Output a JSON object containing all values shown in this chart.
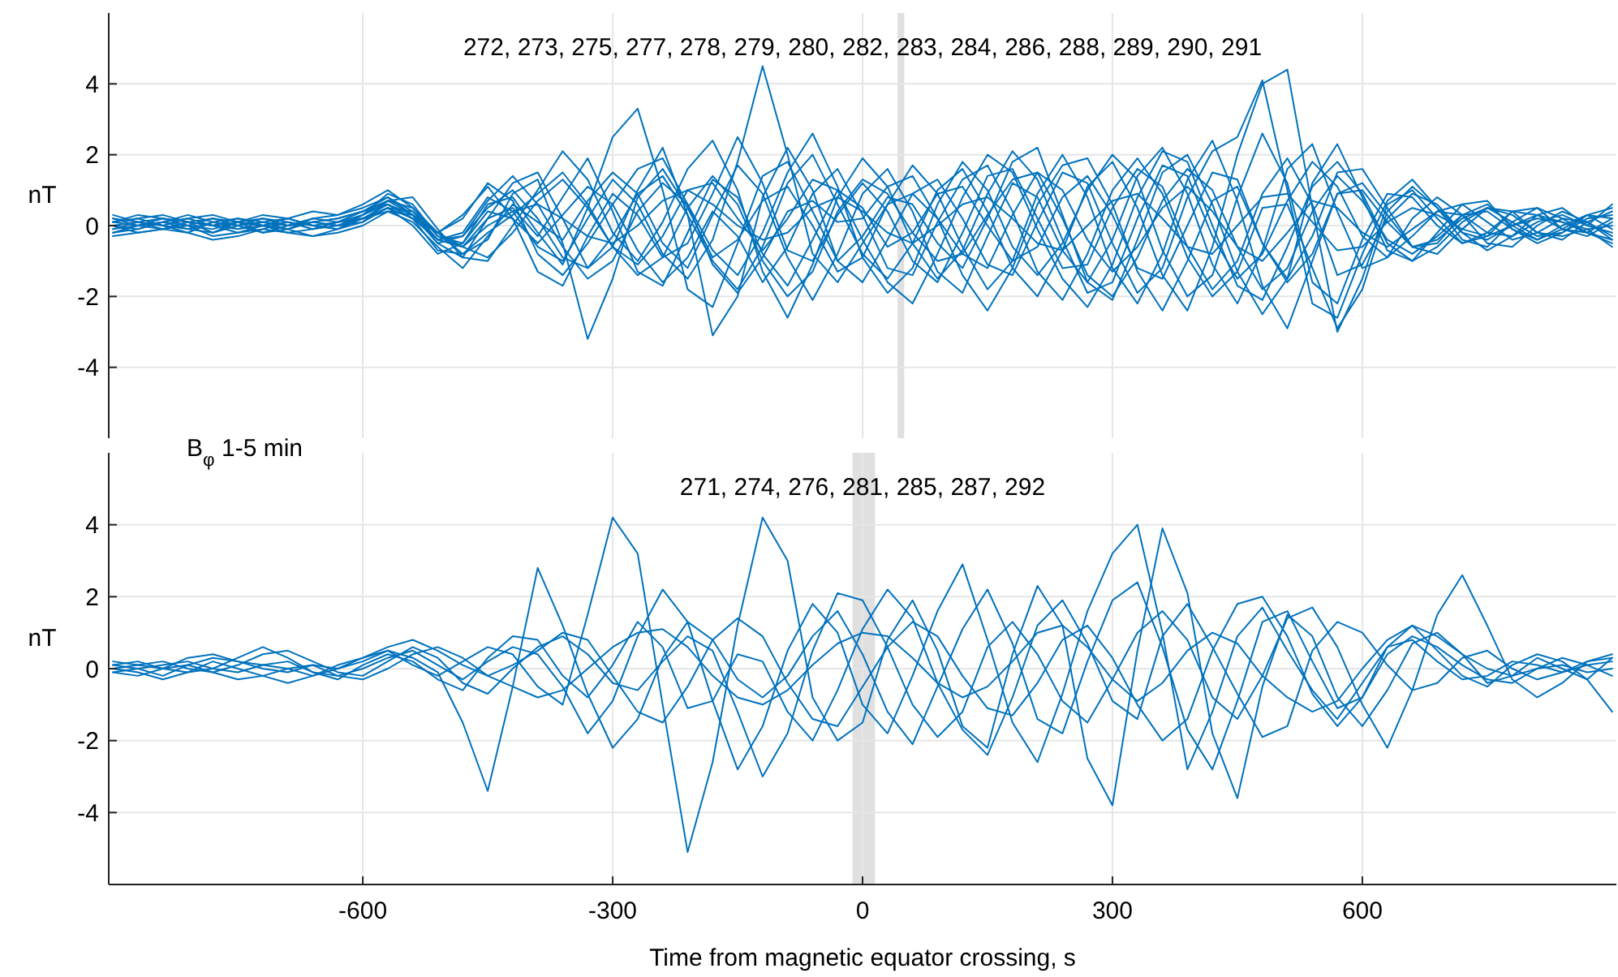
{
  "chart_data": [
    {
      "type": "line",
      "ylabel": "nT",
      "annotations": [
        "272, 273, 275, 277, 278, 279, 280, 282, 283, 284, 286, 288, 289, 290, 291"
      ],
      "x": [
        -900,
        -870,
        -840,
        -810,
        -780,
        -750,
        -720,
        -690,
        -660,
        -630,
        -600,
        -570,
        -540,
        -510,
        -480,
        -450,
        -420,
        -390,
        -360,
        -330,
        -300,
        -270,
        -240,
        -210,
        -180,
        -150,
        -120,
        -90,
        -60,
        -30,
        0,
        30,
        60,
        90,
        120,
        150,
        180,
        210,
        240,
        270,
        300,
        330,
        360,
        390,
        420,
        450,
        480,
        510,
        540,
        570,
        600,
        630,
        660,
        690,
        720,
        750,
        780,
        810,
        840,
        870,
        900
      ],
      "xlim": [
        -905,
        905
      ],
      "xticks": [
        -600,
        -300,
        0,
        300,
        600
      ],
      "ylim": [
        -6,
        6
      ],
      "yticks": [
        -4,
        -2,
        0,
        2,
        4
      ],
      "tick_labels": "y",
      "grid": true,
      "bands": [
        {
          "axis": "x",
          "from": 42,
          "to": 50,
          "color": "#e0e0e0"
        }
      ],
      "series": [
        {
          "color": "#0072bd",
          "values": [
            0.1,
            0.2,
            0.0,
            -0.1,
            0.1,
            0.0,
            0.2,
            0.1,
            -0.1,
            0.0,
            0.3,
            0.6,
            0.2,
            -0.4,
            -0.2,
            0.8,
            0.4,
            -0.6,
            -1.0,
            0.2,
            1.3,
            0.6,
            -0.8,
            -1.5,
            -0.4,
            1.8,
            4.5,
            2.0,
            -0.8,
            -1.6,
            -0.5,
            0.6,
            0.9,
            0.2,
            -0.8,
            -1.2,
            0.3,
            1.5,
            1.0,
            -0.4,
            -1.3,
            -0.6,
            0.5,
            1.1,
            0.4,
            -0.6,
            -1.0,
            -0.2,
            0.7,
            0.5,
            -0.2,
            -0.6,
            -0.1,
            0.4,
            0.3,
            -0.2,
            -0.3,
            0.1,
            0.3,
            0.0,
            -0.2
          ]
        },
        {
          "color": "#0072bd",
          "values": [
            -0.1,
            0.0,
            0.2,
            0.1,
            -0.2,
            0.0,
            0.1,
            -0.1,
            0.2,
            0.3,
            0.5,
            0.8,
            0.3,
            -0.5,
            -0.3,
            0.5,
            1.0,
            0.2,
            -0.9,
            -1.2,
            -0.3,
            0.9,
            1.4,
            0.3,
            -1.0,
            -1.8,
            -0.6,
            1.2,
            2.0,
            0.6,
            -0.8,
            -1.5,
            -0.5,
            1.0,
            1.6,
            0.4,
            -1.2,
            -2.0,
            -0.7,
            1.1,
            1.8,
            0.5,
            -1.4,
            -2.4,
            -0.6,
            2.0,
            4.0,
            4.4,
            0.5,
            -3.0,
            -1.5,
            0.6,
            1.0,
            0.2,
            -0.5,
            -0.3,
            0.4,
            0.5,
            -0.1,
            -0.3,
            0.1
          ]
        },
        {
          "color": "#0072bd",
          "values": [
            0.2,
            0.1,
            -0.1,
            0.0,
            0.2,
            0.1,
            -0.2,
            0.0,
            0.1,
            0.2,
            0.4,
            0.7,
            0.5,
            -0.3,
            -0.6,
            0.2,
            1.2,
            1.5,
            0.2,
            -1.2,
            -0.6,
            1.0,
            2.2,
            0.3,
            -3.1,
            -2.0,
            0.8,
            2.2,
            1.0,
            -1.0,
            -1.6,
            -0.4,
            0.9,
            1.3,
            0.2,
            -1.1,
            -1.4,
            0.1,
            1.5,
            1.2,
            -0.5,
            -1.9,
            -1.2,
            0.8,
            2.1,
            2.5,
            4.1,
            1.0,
            -2.2,
            -2.6,
            -0.8,
            0.7,
            1.3,
            0.5,
            -0.4,
            -0.6,
            0.1,
            0.5,
            0.2,
            -0.2,
            -0.4
          ]
        },
        {
          "color": "#0072bd",
          "values": [
            0.0,
            -0.2,
            -0.1,
            0.1,
            0.0,
            -0.2,
            -0.1,
            0.1,
            0.0,
            -0.1,
            0.2,
            0.5,
            0.4,
            -0.2,
            -0.8,
            -0.4,
            0.9,
            1.3,
            -0.5,
            -3.2,
            -1.5,
            0.8,
            1.6,
            0.5,
            -0.9,
            -0.4,
            0.7,
            1.1,
            0.0,
            -1.3,
            -0.9,
            0.6,
            1.7,
            0.9,
            -0.6,
            -1.8,
            -1.0,
            0.9,
            2.0,
            0.8,
            -1.2,
            -2.2,
            -0.8,
            1.3,
            2.4,
            0.7,
            -1.7,
            -2.9,
            -1.0,
            0.9,
            1.2,
            0.3,
            -0.6,
            -0.5,
            0.3,
            0.6,
            0.0,
            -0.4,
            -0.1,
            0.3,
            0.2
          ]
        },
        {
          "color": "#0072bd",
          "values": [
            0.1,
            0.3,
            0.2,
            0.0,
            -0.1,
            0.1,
            0.3,
            0.2,
            0.0,
            0.1,
            0.3,
            0.9,
            0.6,
            -0.3,
            -0.5,
            0.6,
            0.8,
            -0.2,
            -1.1,
            0.5,
            2.5,
            3.3,
            1.0,
            -1.8,
            -2.3,
            -0.5,
            1.4,
            1.8,
            0.4,
            -1.0,
            -0.3,
            0.8,
            0.6,
            -0.5,
            -1.2,
            0.2,
            1.8,
            2.2,
            0.3,
            -1.6,
            -2.1,
            -0.4,
            1.5,
            2.0,
            0.6,
            -1.3,
            -2.5,
            -1.5,
            1.2,
            2.3,
            0.8,
            -0.7,
            -1.0,
            -0.2,
            0.6,
            0.7,
            -0.1,
            -0.5,
            -0.2,
            0.3,
            0.5
          ]
        },
        {
          "color": "#0072bd",
          "values": [
            -0.2,
            -0.1,
            0.1,
            0.0,
            -0.3,
            -0.2,
            0.0,
            -0.1,
            -0.3,
            -0.2,
            0.0,
            0.4,
            0.1,
            -0.6,
            -1.2,
            -0.3,
            0.6,
            0.1,
            -0.4,
            0.7,
            1.5,
            0.9,
            -0.5,
            -1.2,
            0.3,
            1.7,
            0.9,
            -0.9,
            -2.1,
            -0.8,
            0.9,
            1.6,
            0.4,
            -1.3,
            -1.9,
            -0.3,
            1.2,
            0.8,
            -0.7,
            -1.6,
            -0.4,
            1.4,
            2.2,
            0.9,
            -1.1,
            -2.2,
            -0.7,
            1.6,
            2.3,
            0.4,
            -1.2,
            -0.9,
            0.2,
            0.8,
            0.3,
            -0.5,
            -0.6,
            0.0,
            0.4,
            0.1,
            -0.3
          ]
        },
        {
          "color": "#0072bd",
          "values": [
            0.3,
            0.1,
            0.0,
            0.2,
            0.3,
            0.1,
            0.0,
            0.2,
            0.4,
            0.3,
            0.6,
            1.0,
            0.5,
            -0.2,
            0.3,
            1.1,
            0.2,
            -1.3,
            -1.7,
            -0.3,
            0.9,
            0.3,
            -0.9,
            -0.5,
            0.9,
            2.5,
            1.2,
            -0.7,
            -1.0,
            0.3,
            1.2,
            0.4,
            -1.0,
            -1.6,
            -0.2,
            1.4,
            1.6,
            0.2,
            -1.2,
            -1.1,
            0.5,
            1.6,
            1.1,
            -0.6,
            -1.8,
            -1.0,
            0.9,
            1.9,
            0.6,
            -1.4,
            -1.1,
            0.2,
            0.9,
            0.6,
            -0.2,
            -0.7,
            -0.3,
            0.3,
            0.5,
            0.0,
            0.6
          ]
        },
        {
          "color": "#0072bd",
          "values": [
            -0.1,
            0.1,
            0.0,
            -0.2,
            0.1,
            0.2,
            0.0,
            -0.1,
            0.1,
            0.0,
            0.2,
            0.6,
            0.3,
            -0.5,
            -0.9,
            0.2,
            0.5,
            -0.3,
            0.8,
            1.9,
            0.4,
            -1.3,
            -1.7,
            -0.2,
            1.3,
            0.8,
            -0.8,
            -1.7,
            -0.4,
            1.0,
            0.5,
            -0.6,
            -0.2,
            0.9,
            1.1,
            0.0,
            -1.0,
            -0.6,
            0.8,
            1.4,
            0.3,
            -1.2,
            -1.5,
            0.0,
            1.5,
            1.3,
            -0.5,
            -1.6,
            -0.8,
            0.9,
            1.0,
            0.1,
            -0.6,
            -0.4,
            0.2,
            0.5,
            0.1,
            -0.3,
            -0.2,
            0.2,
            0.3
          ]
        },
        {
          "color": "#0072bd",
          "values": [
            0.0,
            0.1,
            0.2,
            0.1,
            0.0,
            0.1,
            0.2,
            0.0,
            0.1,
            0.2,
            0.4,
            0.8,
            0.4,
            -0.4,
            -0.6,
            0.0,
            0.4,
            0.6,
            0.2,
            -0.3,
            -0.5,
            0.0,
            0.7,
            1.0,
            0.6,
            0.0,
            -0.4,
            -0.2,
            0.5,
            0.8,
            0.4,
            -0.2,
            -0.5,
            0.0,
            0.6,
            0.8,
            0.2,
            -0.5,
            -0.7,
            0.0,
            0.7,
            0.9,
            0.2,
            -0.6,
            -0.8,
            0.0,
            0.8,
            0.9,
            0.1,
            -0.7,
            -0.6,
            0.1,
            0.5,
            0.3,
            -0.1,
            -0.3,
            0.0,
            0.2,
            0.1,
            -0.1,
            0.0
          ]
        },
        {
          "color": "#0072bd",
          "values": [
            -0.3,
            -0.2,
            -0.1,
            -0.2,
            -0.4,
            -0.3,
            -0.1,
            -0.2,
            -0.3,
            -0.1,
            0.1,
            0.5,
            0.2,
            -0.7,
            -0.8,
            -0.2,
            0.3,
            0.9,
            1.5,
            0.6,
            -0.6,
            -1.4,
            -0.9,
            0.5,
            1.4,
            0.6,
            -1.0,
            -2.0,
            -1.3,
            0.4,
            1.3,
            0.9,
            -0.2,
            -1.0,
            -0.8,
            0.3,
            1.3,
            1.5,
            0.2,
            -1.4,
            -2.0,
            -0.9,
            0.7,
            1.6,
            1.0,
            -0.6,
            -1.8,
            -1.2,
            0.4,
            1.4,
            0.7,
            -0.4,
            -0.8,
            -0.3,
            0.3,
            0.4,
            -0.1,
            -0.4,
            0.0,
            0.3,
            -0.1
          ]
        },
        {
          "color": "#0072bd",
          "values": [
            0.2,
            0.0,
            -0.1,
            0.1,
            0.2,
            0.0,
            -0.2,
            -0.1,
            0.1,
            0.0,
            0.1,
            0.7,
            0.8,
            -0.1,
            -0.9,
            -1.0,
            0.0,
            1.0,
            2.1,
            1.3,
            -0.2,
            -1.0,
            0.1,
            1.6,
            2.4,
            1.0,
            -1.3,
            -2.6,
            -1.1,
            0.8,
            1.9,
            1.1,
            -0.5,
            -1.5,
            -0.7,
            0.9,
            2.1,
            1.3,
            -0.4,
            -1.9,
            -1.6,
            0.2,
            1.7,
            1.4,
            -0.3,
            -1.5,
            -0.8,
            0.7,
            1.8,
            1.1,
            -0.3,
            -0.9,
            -0.3,
            0.4,
            0.6,
            0.1,
            -0.4,
            -0.2,
            0.2,
            0.1,
            -0.4
          ]
        },
        {
          "color": "#0072bd",
          "values": [
            0.1,
            0.0,
            0.1,
            0.3,
            0.1,
            -0.1,
            0.1,
            0.2,
            0.0,
            -0.1,
            0.3,
            0.7,
            0.3,
            -0.4,
            -0.3,
            0.7,
            1.4,
            0.6,
            -0.6,
            -1.5,
            -1.0,
            0.4,
            1.2,
            0.6,
            -0.7,
            -1.4,
            -0.2,
            1.5,
            2.6,
            1.1,
            -0.9,
            -1.9,
            -1.2,
            0.6,
            1.8,
            1.0,
            -0.6,
            -1.4,
            -0.5,
            1.0,
            2.0,
            1.3,
            -0.7,
            -2.0,
            -1.4,
            0.8,
            2.6,
            1.2,
            -1.6,
            -2.2,
            -0.4,
            0.9,
            0.8,
            0.0,
            -0.5,
            -0.2,
            0.4,
            0.3,
            -0.1,
            -0.2,
            0.2
          ]
        },
        {
          "color": "#0072bd",
          "values": [
            -0.2,
            0.0,
            0.1,
            -0.1,
            -0.2,
            0.1,
            0.0,
            -0.2,
            -0.1,
            0.1,
            0.2,
            0.5,
            0.0,
            -0.8,
            -0.5,
            0.4,
            0.2,
            -0.5,
            0.3,
            1.1,
            0.6,
            -0.7,
            -1.6,
            -0.9,
            0.4,
            -0.3,
            -1.6,
            -0.6,
            0.9,
            1.6,
            0.3,
            -1.2,
            -1.4,
            0.1,
            1.3,
            1.7,
            0.4,
            -1.3,
            -2.1,
            -0.8,
            1.0,
            1.9,
            0.9,
            -0.9,
            -2.0,
            -1.3,
            0.5,
            0.6,
            -1.2,
            -2.9,
            -1.8,
            0.4,
            1.1,
            0.5,
            -0.2,
            -0.4,
            0.0,
            0.3,
            0.1,
            -0.2,
            -0.5
          ]
        },
        {
          "color": "#0072bd",
          "values": [
            0.1,
            0.2,
            0.3,
            0.1,
            0.0,
            0.2,
            0.1,
            0.0,
            0.2,
            0.1,
            0.4,
            0.6,
            0.2,
            -0.2,
            0.2,
            1.2,
            0.7,
            -0.8,
            -1.4,
            -0.5,
            0.6,
            1.6,
            1.9,
            0.6,
            -1.1,
            -1.9,
            -0.9,
            0.4,
            0.7,
            0.1,
            0.2,
            1.1,
            1.4,
            0.2,
            -1.4,
            -2.4,
            -1.2,
            0.6,
            1.7,
            1.9,
            0.6,
            -1.3,
            -2.4,
            -1.0,
            0.7,
            1.1,
            -0.5,
            -1.5,
            -0.3,
            1.5,
            1.6,
            0.5,
            -0.6,
            -0.8,
            -0.1,
            0.5,
            0.4,
            -0.2,
            -0.4,
            0.1,
            0.4
          ]
        },
        {
          "color": "#0072bd",
          "values": [
            0.0,
            -0.1,
            0.1,
            0.2,
            0.0,
            -0.1,
            0.0,
            0.1,
            -0.1,
            0.1,
            0.2,
            0.4,
            0.3,
            -0.2,
            -0.6,
            -0.9,
            -0.2,
            0.7,
            1.3,
            0.5,
            -0.6,
            -1.1,
            -0.3,
            1.0,
            1.2,
            0.2,
            -0.7,
            0.2,
            1.3,
            1.0,
            -0.4,
            -1.6,
            -2.2,
            -0.8,
            0.8,
            2.0,
            1.5,
            -0.1,
            -1.5,
            -2.3,
            -1.1,
            0.8,
            2.1,
            1.8,
            0.0,
            -1.7,
            -2.1,
            -0.6,
            1.1,
            1.8,
            0.9,
            -0.5,
            -1.0,
            -0.6,
            0.1,
            0.5,
            0.3,
            -0.2,
            -0.3,
            -0.1,
            -0.6
          ]
        }
      ]
    },
    {
      "type": "line",
      "ylabel": "nT",
      "xlabel": "Time from magnetic equator crossing, s",
      "annotations": [
        "B$_{φ}$ 1-5 min",
        "271, 274, 276, 281, 285, 287, 292"
      ],
      "x": [
        -900,
        -870,
        -840,
        -810,
        -780,
        -750,
        -720,
        -690,
        -660,
        -630,
        -600,
        -570,
        -540,
        -510,
        -480,
        -450,
        -420,
        -390,
        -360,
        -330,
        -300,
        -270,
        -240,
        -210,
        -180,
        -150,
        -120,
        -90,
        -60,
        -30,
        0,
        30,
        60,
        90,
        120,
        150,
        180,
        210,
        240,
        270,
        300,
        330,
        360,
        390,
        420,
        450,
        480,
        510,
        540,
        570,
        600,
        630,
        660,
        690,
        720,
        750,
        780,
        810,
        840,
        870,
        900
      ],
      "xlim": [
        -905,
        905
      ],
      "xticks": [
        -600,
        -300,
        0,
        300,
        600
      ],
      "ylim": [
        -6,
        6
      ],
      "yticks": [
        -4,
        -2,
        0,
        2,
        4
      ],
      "grid": true,
      "bands": [
        {
          "axis": "x",
          "from": -12,
          "to": 15,
          "color": "#e0e0e0"
        }
      ],
      "series": [
        {
          "color": "#0072bd",
          "values": [
            0.1,
            0.0,
            -0.2,
            0.1,
            0.3,
            0.2,
            0.0,
            -0.1,
            0.1,
            0.0,
            0.2,
            0.5,
            0.3,
            -0.1,
            -1.5,
            -3.4,
            -0.5,
            2.8,
            1.2,
            -0.7,
            -2.2,
            -1.4,
            0.3,
            1.3,
            0.8,
            -0.3,
            -0.8,
            -0.2,
            0.9,
            1.6,
            0.4,
            -1.2,
            -2.1,
            -0.5,
            1.1,
            2.2,
            0.7,
            -1.4,
            -1.8,
            0.2,
            1.9,
            2.4,
            0.6,
            -1.7,
            -2.8,
            -0.9,
            1.3,
            1.6,
            0.2,
            -1.1,
            -0.8,
            0.6,
            1.2,
            0.5,
            -0.2,
            -0.5,
            0.1,
            0.4,
            0.2,
            -0.3,
            -1.2
          ]
        },
        {
          "color": "#0072bd",
          "values": [
            0.0,
            -0.1,
            -0.3,
            -0.1,
            0.2,
            0.0,
            -0.2,
            -0.4,
            -0.2,
            0.1,
            0.3,
            0.5,
            0.1,
            -0.2,
            0.2,
            0.6,
            0.4,
            -0.5,
            -1.0,
            1.5,
            4.2,
            3.2,
            -1.0,
            -5.1,
            -2.6,
            1.2,
            4.2,
            3.0,
            -0.8,
            -2.0,
            -1.5,
            0.8,
            1.9,
            0.5,
            -1.6,
            -2.2,
            0.4,
            2.3,
            1.2,
            -2.5,
            -3.8,
            0.5,
            3.9,
            2.1,
            -1.8,
            -3.6,
            -0.5,
            1.5,
            0.9,
            -0.8,
            -1.6,
            -0.6,
            0.7,
            1.0,
            0.4,
            -0.4,
            -0.2,
            0.3,
            0.0,
            -0.3,
            0.3
          ]
        },
        {
          "color": "#0072bd",
          "values": [
            0.1,
            0.2,
            0.0,
            -0.1,
            0.0,
            0.3,
            0.6,
            0.3,
            -0.1,
            -0.2,
            0.0,
            0.3,
            0.5,
            0.1,
            -0.3,
            0.2,
            0.6,
            0.4,
            -0.5,
            -1.8,
            -0.9,
            0.9,
            2.2,
            1.3,
            -0.9,
            -2.8,
            -1.6,
            0.5,
            1.8,
            1.0,
            -1.0,
            -1.8,
            -0.2,
            1.6,
            2.9,
            0.8,
            -1.5,
            -2.6,
            -0.7,
            1.6,
            3.2,
            4.0,
            1.0,
            -2.8,
            -1.2,
            0.9,
            1.7,
            0.5,
            -0.6,
            -1.4,
            -0.4,
            0.6,
            0.8,
            0.2,
            -0.3,
            -0.2,
            0.2,
            0.1,
            -0.1,
            0.2,
            0.4
          ]
        },
        {
          "color": "#0072bd",
          "values": [
            -0.1,
            0.0,
            0.1,
            0.2,
            0.0,
            -0.1,
            0.1,
            0.2,
            -0.1,
            -0.3,
            0.1,
            0.4,
            0.2,
            -0.3,
            -0.6,
            0.3,
            0.9,
            0.8,
            -0.2,
            -0.8,
            0.1,
            1.3,
            0.6,
            -1.1,
            -0.9,
            0.4,
            0.2,
            -1.2,
            -2.0,
            -0.6,
            1.1,
            2.2,
            1.4,
            -0.4,
            -1.7,
            -2.4,
            -0.8,
            1.2,
            1.9,
            0.7,
            -0.9,
            -1.4,
            0.9,
            1.8,
            0.6,
            -0.7,
            -1.9,
            -1.6,
            0.5,
            1.3,
            1.0,
            0.1,
            -0.6,
            -0.4,
            0.3,
            0.5,
            0.0,
            -0.3,
            -0.1,
            0.1,
            0.2
          ]
        },
        {
          "color": "#0072bd",
          "values": [
            0.2,
            0.1,
            0.0,
            0.3,
            0.4,
            0.2,
            0.1,
            0.0,
            -0.2,
            0.0,
            0.3,
            0.6,
            0.8,
            0.5,
            0.1,
            -0.2,
            -0.5,
            -0.8,
            -0.6,
            0.0,
            0.6,
            1.0,
            1.1,
            0.6,
            -0.2,
            -0.8,
            -1.0,
            -0.6,
            0.1,
            0.7,
            1.0,
            0.9,
            0.3,
            -0.4,
            -0.8,
            -0.5,
            0.2,
            1.0,
            1.2,
            0.6,
            -0.3,
            -0.9,
            -0.4,
            0.5,
            1.0,
            0.7,
            -0.2,
            -0.8,
            -1.2,
            -0.9,
            0.0,
            0.8,
            1.2,
            0.9,
            0.4,
            0.0,
            -0.2,
            0.0,
            0.1,
            -0.1,
            0.0
          ]
        },
        {
          "color": "#0072bd",
          "values": [
            0.0,
            0.1,
            0.2,
            0.0,
            -0.1,
            0.1,
            0.4,
            0.5,
            0.2,
            -0.1,
            -0.2,
            0.2,
            0.6,
            0.3,
            -0.4,
            -0.7,
            0.0,
            0.6,
            0.9,
            0.4,
            -0.4,
            -0.6,
            0.2,
            0.9,
            0.5,
            -1.2,
            -3.0,
            -1.8,
            0.5,
            2.1,
            1.9,
            0.6,
            -1.0,
            -1.9,
            -1.2,
            0.6,
            1.3,
            0.4,
            -0.9,
            -1.5,
            -0.3,
            1.0,
            1.6,
            0.8,
            -0.8,
            -1.4,
            -0.2,
            1.4,
            1.7,
            0.6,
            -1.0,
            -2.2,
            -0.6,
            1.5,
            2.6,
            1.2,
            -0.3,
            -0.8,
            -0.4,
            0.2,
            0.3
          ]
        },
        {
          "color": "#0072bd",
          "values": [
            -0.1,
            -0.2,
            0.0,
            0.1,
            -0.1,
            -0.3,
            -0.2,
            0.0,
            0.1,
            -0.2,
            -0.3,
            0.0,
            0.4,
            0.6,
            0.3,
            -0.2,
            0.1,
            0.5,
            1.0,
            0.8,
            -0.2,
            -1.2,
            -1.5,
            -0.5,
            0.8,
            1.4,
            0.9,
            -0.4,
            -1.4,
            -1.6,
            -0.5,
            0.6,
            1.3,
            0.9,
            -0.2,
            -1.1,
            -1.3,
            -0.4,
            0.8,
            1.2,
            0.3,
            -1.0,
            -2.0,
            -1.4,
            0.5,
            1.8,
            2.0,
            0.9,
            -0.7,
            -1.6,
            -0.8,
            0.4,
            0.9,
            0.6,
            0.1,
            -0.3,
            -0.4,
            0.0,
            0.3,
            0.1,
            -0.2
          ]
        }
      ]
    }
  ]
}
